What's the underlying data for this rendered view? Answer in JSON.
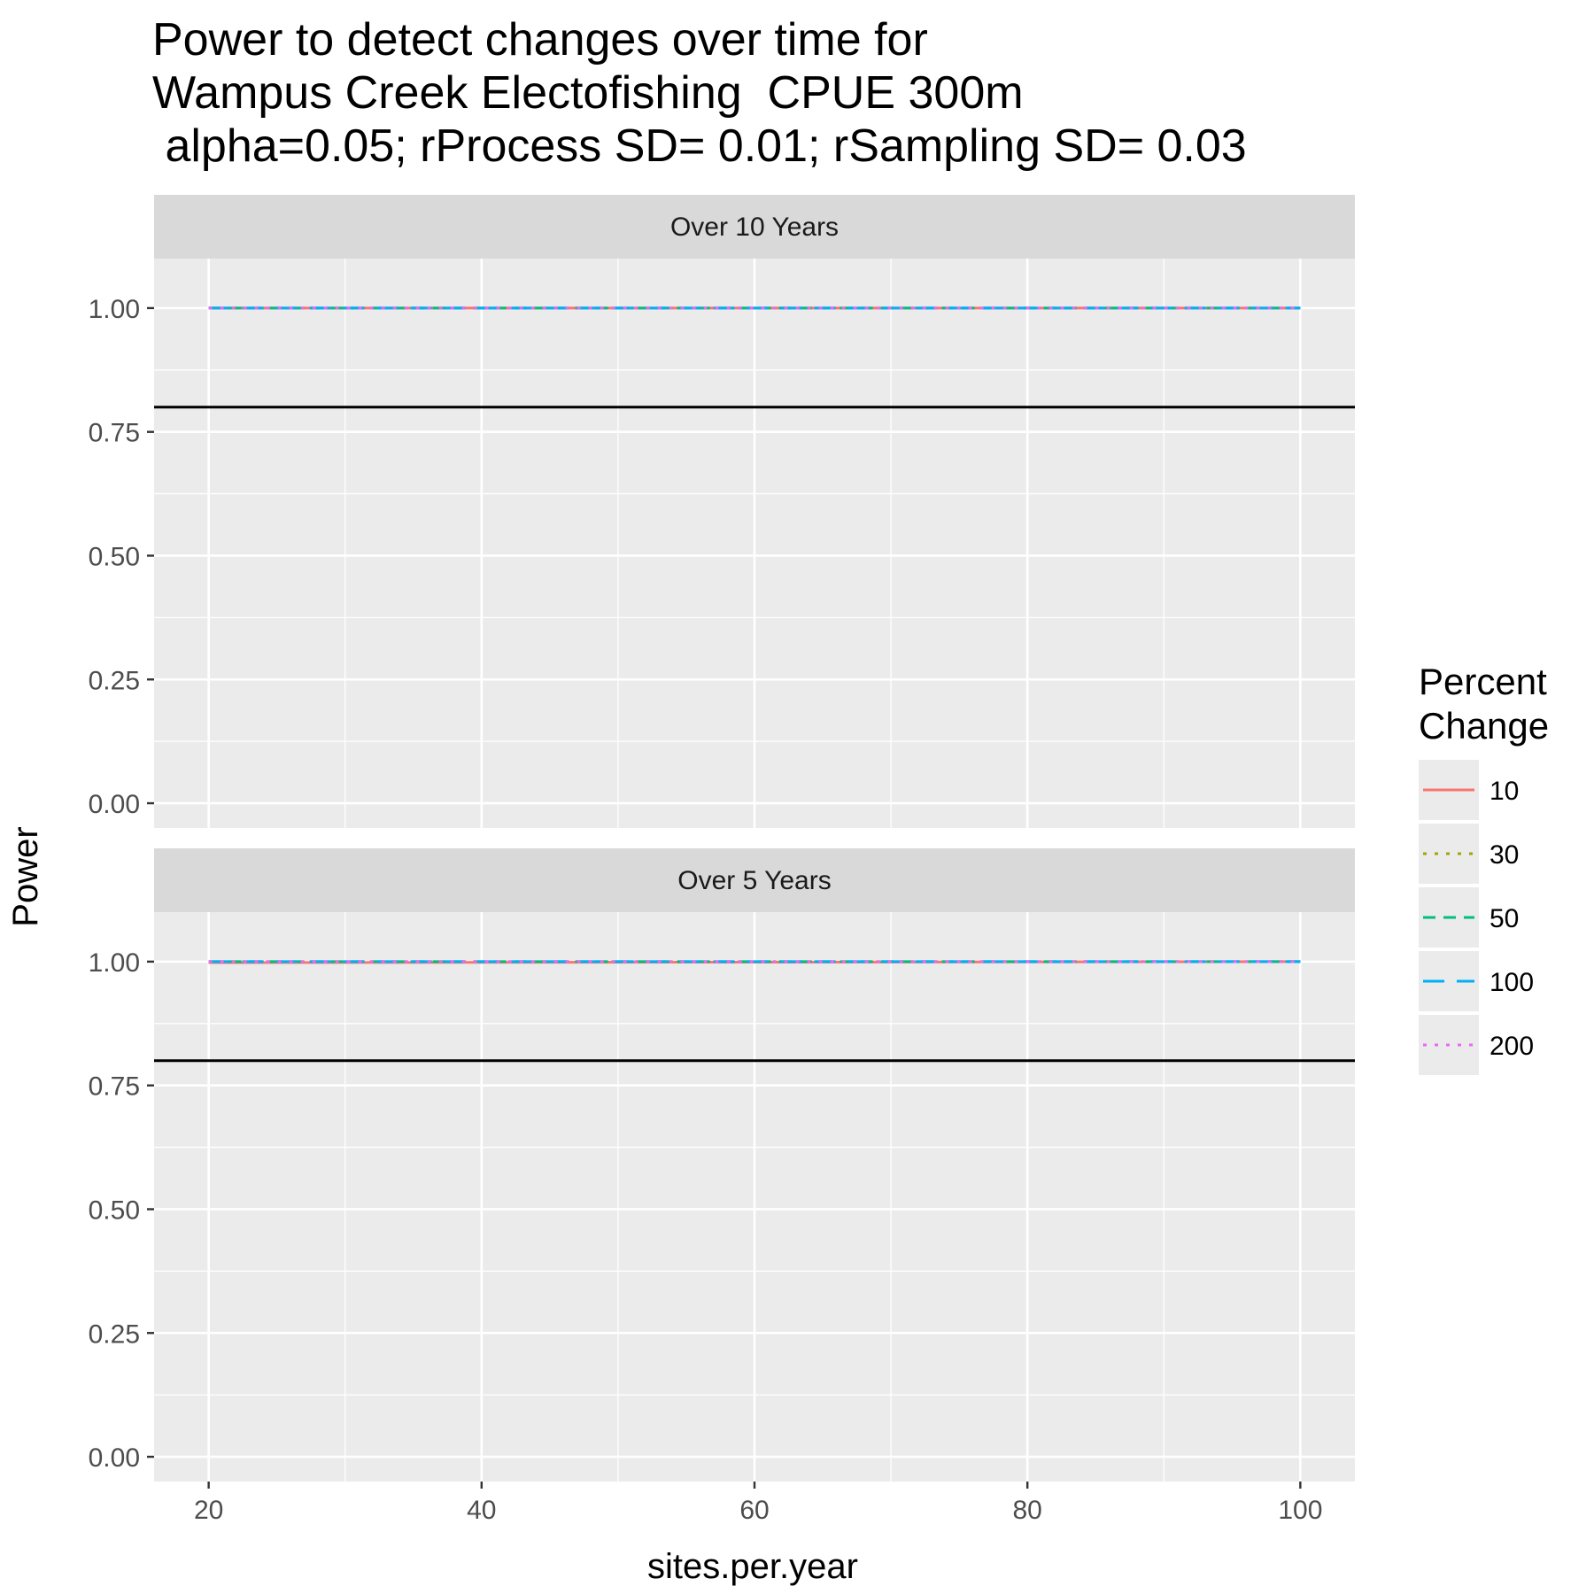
{
  "chart_data": {
    "type": "line",
    "title_lines": [
      "Power to detect changes over time for",
      "Wampus Creek Electofishing  CPUE 300m",
      " alpha=0.05; rProcess SD= 0.01; rSampling SD= 0.03"
    ],
    "xlabel": "sites.per.year",
    "ylabel": "Power",
    "xlim": [
      16,
      104
    ],
    "ylim": [
      -0.05,
      1.1
    ],
    "x_ticks": [
      20,
      40,
      60,
      80,
      100
    ],
    "x_tick_labels": [
      "20",
      "40",
      "60",
      "80",
      "100"
    ],
    "y_ticks": [
      0.0,
      0.25,
      0.5,
      0.75,
      1.0
    ],
    "y_tick_labels": [
      "0.00",
      "0.25",
      "0.50",
      "0.75",
      "1.00"
    ],
    "grid": true,
    "reference_line": 0.8,
    "legend": {
      "title_lines": [
        "Percent",
        "Change"
      ],
      "placement": "right"
    },
    "series_styles": [
      {
        "name": "10",
        "color": "#f8766d",
        "dash": "solid"
      },
      {
        "name": "30",
        "color": "#a3a500",
        "dash": "dotted"
      },
      {
        "name": "50",
        "color": "#00bf7d",
        "dash": "dashed"
      },
      {
        "name": "100",
        "color": "#00b0f6",
        "dash": "longdash"
      },
      {
        "name": "200",
        "color": "#e76bf3",
        "dash": "dotted"
      }
    ],
    "panels": [
      {
        "strip": "Over 10 Years",
        "series": [
          {
            "name": "10",
            "x": [
              20,
              100
            ],
            "y": [
              1.0,
              1.0
            ]
          },
          {
            "name": "30",
            "x": [
              20,
              100
            ],
            "y": [
              1.0,
              1.0
            ]
          },
          {
            "name": "50",
            "x": [
              20,
              100
            ],
            "y": [
              1.0,
              1.0
            ]
          },
          {
            "name": "100",
            "x": [
              20,
              100
            ],
            "y": [
              1.0,
              1.0
            ]
          },
          {
            "name": "200",
            "x": [
              20,
              100
            ],
            "y": [
              1.0,
              1.0
            ]
          }
        ]
      },
      {
        "strip": "Over 5 Years",
        "series": [
          {
            "name": "10",
            "x": [
              20,
              100
            ],
            "y": [
              0.998,
              1.0
            ]
          },
          {
            "name": "30",
            "x": [
              20,
              100
            ],
            "y": [
              1.0,
              1.0
            ]
          },
          {
            "name": "50",
            "x": [
              20,
              100
            ],
            "y": [
              1.0,
              1.0
            ]
          },
          {
            "name": "100",
            "x": [
              20,
              100
            ],
            "y": [
              1.0,
              1.0
            ]
          },
          {
            "name": "200",
            "x": [
              20,
              100
            ],
            "y": [
              1.0,
              1.0
            ]
          }
        ]
      }
    ]
  }
}
